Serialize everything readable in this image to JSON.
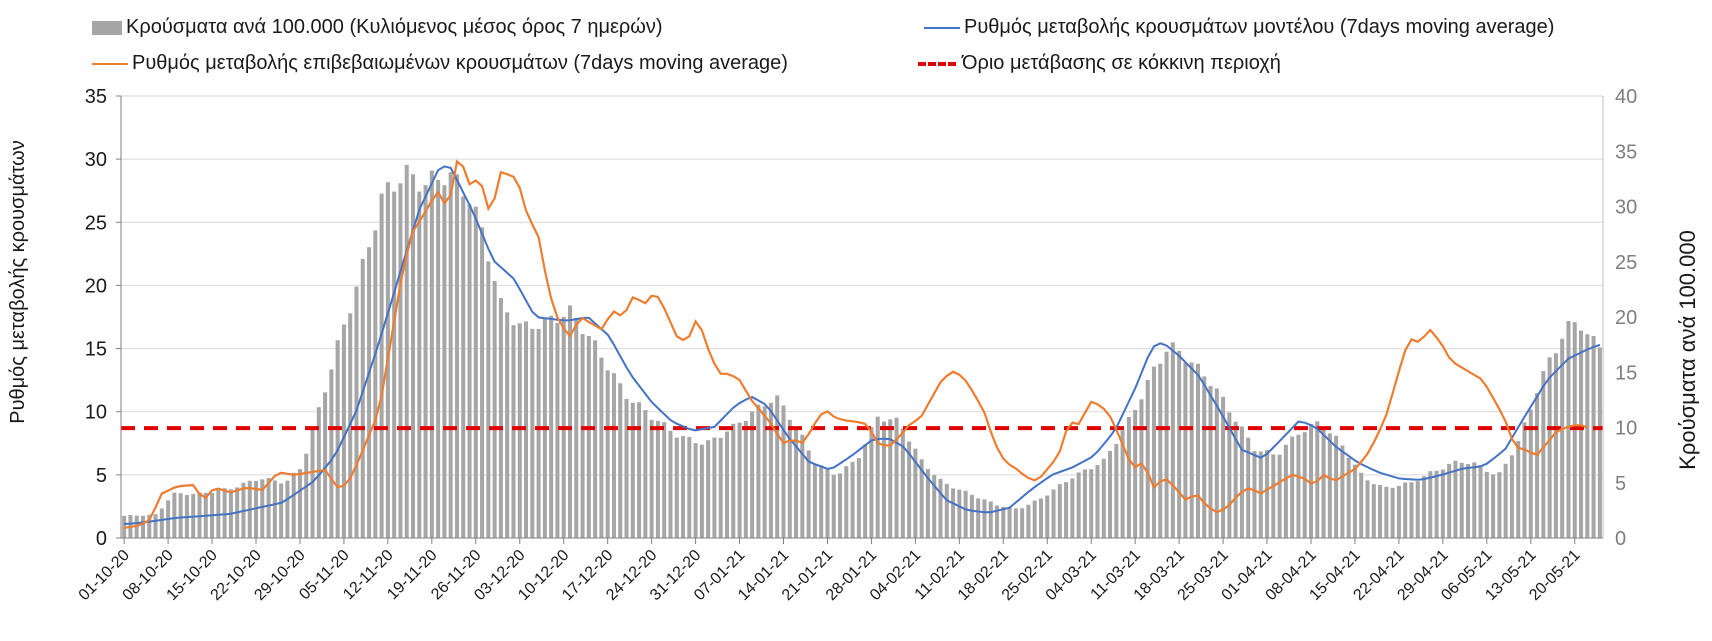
{
  "chart_data": {
    "type": "bar+line",
    "title": "",
    "legend": [
      {
        "key": "bars",
        "label": "Κρούσματα ανά 100.000 (Κυλιόμενος μέσος όρος 7 ημερών)",
        "color": "#a6a6a6"
      },
      {
        "key": "model",
        "label": "Ρυθμός μεταβολής κρουσμάτων μοντέλου (7days moving average)",
        "color": "#4472c4"
      },
      {
        "key": "confirmed",
        "label": "Ρυθμός μεταβολής επιβεβαιωμένων κρουσμάτων (7days moving average)",
        "color": "#ed7d31"
      },
      {
        "key": "threshold",
        "label": "Όριο μετάβασης σε κόκκινη περιοχή",
        "color": "#e00000"
      }
    ],
    "ylabel_left": "Ρυθμός μεταβολής κρουσμάτων",
    "ylabel_right": "Κρούσματα ανά 100.000",
    "y_left": {
      "min": 0,
      "max": 35,
      "ticks": [
        "0",
        "5",
        "10",
        "15",
        "20",
        "25",
        "30",
        "35"
      ]
    },
    "y_right": {
      "min": 0,
      "max": 40,
      "ticks": [
        "0",
        "5",
        "10",
        "15",
        "20",
        "25",
        "30",
        "35",
        "40"
      ]
    },
    "x_tick_labels": [
      "01-10-20",
      "08-10-20",
      "15-10-20",
      "22-10-20",
      "29-10-20",
      "05-11-20",
      "12-11-20",
      "19-11-20",
      "26-11-20",
      "03-12-20",
      "10-12-20",
      "17-12-20",
      "24-12-20",
      "31-12-20",
      "07-01-21",
      "14-01-21",
      "21-01-21",
      "28-01-21",
      "04-02-21",
      "11-02-21",
      "18-02-21",
      "25-02-21",
      "04-03-21",
      "11-03-21",
      "18-03-21",
      "25-03-21",
      "01-04-21",
      "08-04-21",
      "15-04-21",
      "22-04-21",
      "29-04-21",
      "06-05-21",
      "13-05-21",
      "20-05-21"
    ],
    "days": 236,
    "threshold_value": 8.7,
    "bars_anchors": [
      [
        0,
        2
      ],
      [
        6,
        2.1
      ],
      [
        9,
        4
      ],
      [
        14,
        4
      ],
      [
        20,
        4.5
      ],
      [
        25,
        5.4
      ],
      [
        28,
        5.2
      ],
      [
        30,
        5
      ],
      [
        33,
        6.5
      ],
      [
        37,
        13
      ],
      [
        40,
        18
      ],
      [
        44,
        24
      ],
      [
        48,
        31
      ],
      [
        52,
        33
      ],
      [
        56,
        32
      ],
      [
        60,
        33
      ],
      [
        64,
        31
      ],
      [
        67,
        27
      ],
      [
        70,
        21
      ],
      [
        74,
        19
      ],
      [
        78,
        19.5
      ],
      [
        83,
        20.5
      ],
      [
        88,
        17
      ],
      [
        93,
        13
      ],
      [
        98,
        11
      ],
      [
        103,
        9.2
      ],
      [
        108,
        8.5
      ],
      [
        113,
        10
      ],
      [
        117,
        11.5
      ],
      [
        121,
        12.8
      ],
      [
        125,
        10
      ],
      [
        128,
        7
      ],
      [
        132,
        5.7
      ],
      [
        136,
        7
      ],
      [
        140,
        11
      ],
      [
        144,
        10.5
      ],
      [
        148,
        7
      ],
      [
        152,
        5
      ],
      [
        157,
        4
      ],
      [
        162,
        3
      ],
      [
        166,
        2.6
      ],
      [
        170,
        3.5
      ],
      [
        176,
        5.5
      ],
      [
        182,
        7
      ],
      [
        187,
        11
      ],
      [
        191,
        15
      ],
      [
        194,
        17.5
      ],
      [
        198,
        16
      ],
      [
        202,
        14
      ],
      [
        206,
        11
      ],
      [
        210,
        8
      ],
      [
        214,
        7.5
      ],
      [
        218,
        9.5
      ],
      [
        222,
        10.5
      ],
      [
        226,
        8.5
      ],
      [
        230,
        5.5
      ],
      [
        234,
        4.5
      ],
      [
        239,
        5
      ],
      [
        243,
        6
      ],
      [
        248,
        7
      ],
      [
        252,
        6.5
      ],
      [
        255,
        5.5
      ],
      [
        259,
        8.8
      ],
      [
        262,
        13
      ],
      [
        265,
        16.5
      ],
      [
        268,
        19
      ],
      [
        270,
        19.8
      ],
      [
        272,
        18
      ],
      [
        274,
        17.5
      ]
    ],
    "model_anchors": [
      [
        0,
        1.1
      ],
      [
        3,
        1.2
      ],
      [
        10,
        1.6
      ],
      [
        20,
        1.9
      ],
      [
        30,
        2.8
      ],
      [
        36,
        4.5
      ],
      [
        40,
        6.5
      ],
      [
        44,
        10
      ],
      [
        48,
        15
      ],
      [
        52,
        20.5
      ],
      [
        56,
        26
      ],
      [
        60,
        29.5
      ],
      [
        62,
        29.3
      ],
      [
        66,
        26
      ],
      [
        70,
        22
      ],
      [
        74,
        20.5
      ],
      [
        78,
        17.5
      ],
      [
        84,
        17.2
      ],
      [
        88,
        17.5
      ],
      [
        92,
        16
      ],
      [
        96,
        13
      ],
      [
        100,
        10.8
      ],
      [
        104,
        9.2
      ],
      [
        108,
        8.5
      ],
      [
        112,
        8.8
      ],
      [
        116,
        10.5
      ],
      [
        119,
        11.2
      ],
      [
        122,
        10.5
      ],
      [
        126,
        8
      ],
      [
        130,
        6
      ],
      [
        134,
        5.4
      ],
      [
        138,
        6.5
      ],
      [
        142,
        7.8
      ],
      [
        145,
        7.9
      ],
      [
        148,
        7.2
      ],
      [
        152,
        5
      ],
      [
        156,
        3
      ],
      [
        160,
        2.2
      ],
      [
        164,
        2
      ],
      [
        168,
        2.4
      ],
      [
        172,
        3.8
      ],
      [
        176,
        5
      ],
      [
        180,
        5.6
      ],
      [
        184,
        6.5
      ],
      [
        188,
        8.5
      ],
      [
        192,
        12
      ],
      [
        195,
        15.1
      ],
      [
        197,
        15.5
      ],
      [
        200,
        14.5
      ],
      [
        204,
        12.8
      ],
      [
        208,
        10
      ],
      [
        212,
        7
      ],
      [
        216,
        6.3
      ],
      [
        220,
        8
      ],
      [
        223,
        9.3
      ],
      [
        226,
        8.8
      ],
      [
        230,
        7.2
      ],
      [
        234,
        6
      ],
      [
        238,
        5.2
      ],
      [
        242,
        4.7
      ],
      [
        246,
        4.6
      ],
      [
        250,
        5
      ],
      [
        254,
        5.5
      ],
      [
        258,
        5.7
      ],
      [
        262,
        7
      ],
      [
        266,
        9.8
      ],
      [
        270,
        12.5
      ],
      [
        274,
        14.2
      ],
      [
        278,
        15
      ],
      [
        280,
        15.3
      ]
    ],
    "confirmed_anchors": [
      [
        0,
        0.8
      ],
      [
        3,
        1
      ],
      [
        5,
        1.5
      ],
      [
        7,
        3.5
      ],
      [
        10,
        4.1
      ],
      [
        13,
        4.2
      ],
      [
        15,
        3
      ],
      [
        17,
        4
      ],
      [
        20,
        3.6
      ],
      [
        23,
        4
      ],
      [
        26,
        3.8
      ],
      [
        29,
        5.2
      ],
      [
        32,
        5
      ],
      [
        35,
        5.2
      ],
      [
        38,
        5.4
      ],
      [
        40,
        4
      ],
      [
        42,
        4.2
      ],
      [
        44,
        6
      ],
      [
        48,
        10
      ],
      [
        50,
        15
      ],
      [
        52,
        20
      ],
      [
        54,
        24
      ],
      [
        57,
        26
      ],
      [
        59,
        27.5
      ],
      [
        61,
        26
      ],
      [
        63,
        30.5
      ],
      [
        65,
        28
      ],
      [
        67,
        28.5
      ],
      [
        69,
        25.5
      ],
      [
        71,
        29
      ],
      [
        74,
        28.5
      ],
      [
        76,
        25.5
      ],
      [
        78,
        24
      ],
      [
        80,
        19.5
      ],
      [
        82,
        17
      ],
      [
        84,
        16
      ],
      [
        86,
        17.5
      ],
      [
        88,
        17
      ],
      [
        90,
        16.5
      ],
      [
        92,
        18
      ],
      [
        94,
        17.5
      ],
      [
        96,
        19.2
      ],
      [
        98,
        18.5
      ],
      [
        100,
        19.5
      ],
      [
        102,
        18
      ],
      [
        104,
        16
      ],
      [
        106,
        15.5
      ],
      [
        108,
        17.5
      ],
      [
        110,
        15
      ],
      [
        112,
        13
      ],
      [
        114,
        13
      ],
      [
        116,
        12.5
      ],
      [
        118,
        11
      ],
      [
        120,
        10
      ],
      [
        122,
        9
      ],
      [
        124,
        7.5
      ],
      [
        126,
        7.8
      ],
      [
        128,
        7.5
      ],
      [
        130,
        9
      ],
      [
        132,
        10.2
      ],
      [
        134,
        9.5
      ],
      [
        136,
        9.3
      ],
      [
        138,
        9.2
      ],
      [
        140,
        9
      ],
      [
        142,
        7.5
      ],
      [
        144,
        7.2
      ],
      [
        146,
        8
      ],
      [
        148,
        9
      ],
      [
        150,
        9.5
      ],
      [
        152,
        11
      ],
      [
        154,
        12.5
      ],
      [
        156,
        13.2
      ],
      [
        158,
        12.8
      ],
      [
        160,
        11.5
      ],
      [
        162,
        10
      ],
      [
        164,
        7.5
      ],
      [
        166,
        6
      ],
      [
        168,
        5.5
      ],
      [
        170,
        4.8
      ],
      [
        172,
        4.5
      ],
      [
        174,
        5.5
      ],
      [
        176,
        6.5
      ],
      [
        178,
        9.2
      ],
      [
        180,
        9
      ],
      [
        182,
        10.8
      ],
      [
        184,
        10.5
      ],
      [
        186,
        9.5
      ],
      [
        188,
        7.5
      ],
      [
        190,
        5.5
      ],
      [
        192,
        6
      ],
      [
        194,
        4
      ],
      [
        196,
        4.8
      ],
      [
        198,
        4
      ],
      [
        200,
        3
      ],
      [
        202,
        3.5
      ],
      [
        204,
        2.5
      ],
      [
        206,
        2
      ],
      [
        208,
        2.5
      ],
      [
        210,
        3.5
      ],
      [
        212,
        4
      ],
      [
        214,
        3.5
      ],
      [
        216,
        4
      ],
      [
        218,
        4.5
      ],
      [
        220,
        5
      ],
      [
        222,
        4.8
      ],
      [
        224,
        4.2
      ],
      [
        226,
        5
      ],
      [
        228,
        4.5
      ],
      [
        230,
        5
      ],
      [
        232,
        5.5
      ],
      [
        234,
        6.5
      ],
      [
        236,
        8
      ],
      [
        238,
        10
      ],
      [
        240,
        13
      ],
      [
        242,
        15.8
      ],
      [
        244,
        15.5
      ],
      [
        246,
        16.5
      ],
      [
        248,
        15.5
      ],
      [
        250,
        14
      ],
      [
        252,
        13.5
      ],
      [
        254,
        13
      ],
      [
        256,
        12.5
      ],
      [
        258,
        11
      ],
      [
        260,
        9.5
      ],
      [
        262,
        7.2
      ],
      [
        264,
        7
      ],
      [
        266,
        6.5
      ],
      [
        268,
        7.5
      ],
      [
        270,
        8.5
      ],
      [
        272,
        8.8
      ],
      [
        274,
        9
      ],
      [
        276,
        8.7
      ],
      [
        278,
        8.5
      ]
    ]
  }
}
